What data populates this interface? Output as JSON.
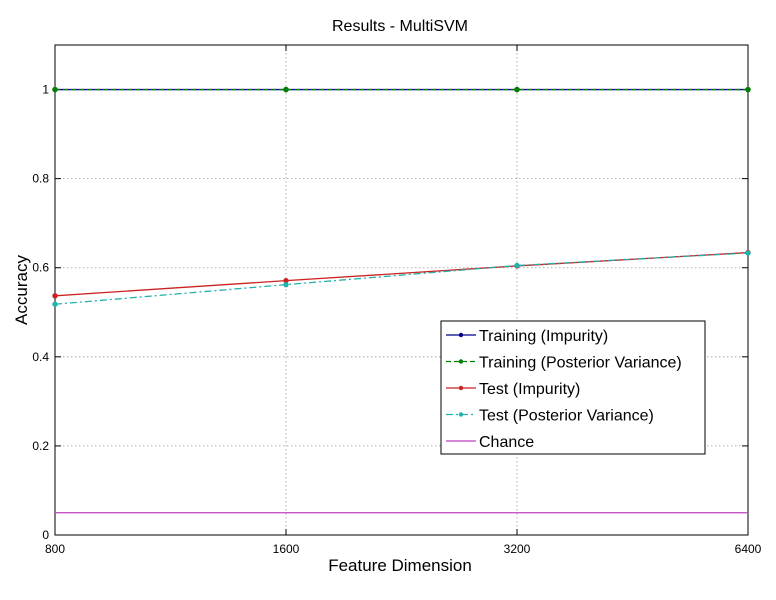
{
  "chart_data": {
    "type": "line",
    "title": "Results - MultiSVM",
    "xlabel": "Feature Dimension",
    "ylabel": "Accuracy",
    "categories": [
      "800",
      "1600",
      "3200",
      "6400"
    ],
    "ylim": [
      0,
      1.1
    ],
    "yticks": [
      0,
      0.2,
      0.4,
      0.6,
      0.8,
      1
    ],
    "ytick_labels": [
      "0",
      "0.2",
      "0.4",
      "0.6",
      "0.8",
      "1"
    ],
    "grid": true,
    "legend_position": "lower-right",
    "series": [
      {
        "name": "Training (Impurity)",
        "values": [
          1.0,
          1.0,
          1.0,
          1.0
        ],
        "color": "#00008b",
        "dash": "solid",
        "marker": true
      },
      {
        "name": "Training (Posterior Variance)",
        "values": [
          1.0,
          1.0,
          1.0,
          1.0
        ],
        "color": "#008000",
        "dash": "dashed",
        "marker": true
      },
      {
        "name": "Test (Impurity)",
        "values": [
          0.537,
          0.571,
          0.604,
          0.634
        ],
        "color": "#cc2222",
        "dash": "solid",
        "marker": true
      },
      {
        "name": "Test (Posterior Variance)",
        "values": [
          0.518,
          0.562,
          0.605,
          0.633
        ],
        "color": "#20b2aa",
        "dash": "dashdot",
        "marker": true
      },
      {
        "name": "Chance",
        "values": [
          0.05,
          0.05,
          0.05,
          0.05
        ],
        "color": "#bf40bf",
        "dash": "solid",
        "marker": false
      }
    ]
  }
}
